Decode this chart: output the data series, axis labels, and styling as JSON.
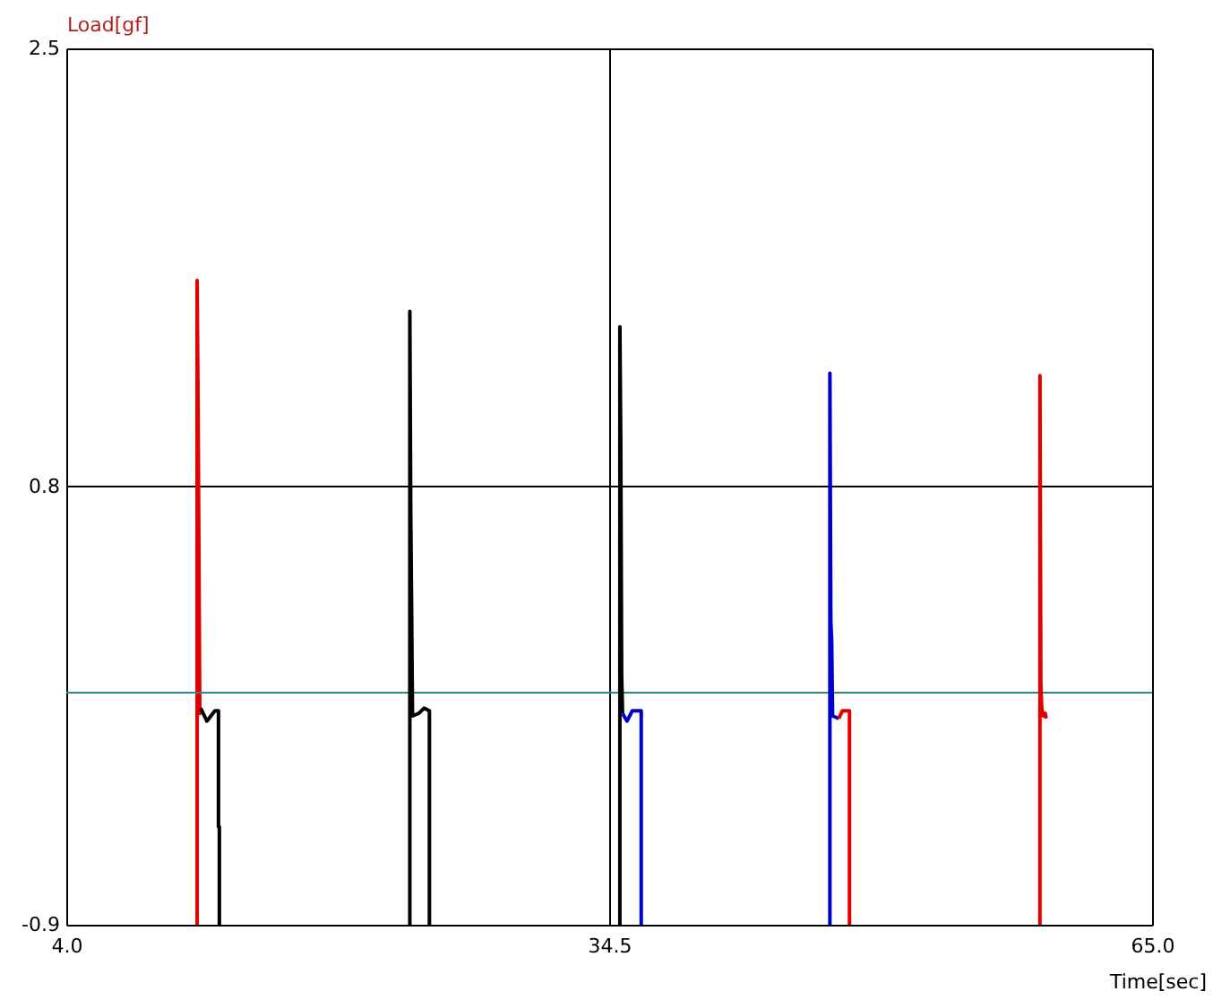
{
  "chart_data": {
    "type": "line",
    "xlabel": "Time[sec]",
    "ylabel": "Load[gf]",
    "xlim": [
      4.0,
      65.0
    ],
    "xticks": [
      {
        "value": 4.0,
        "label": "4.0"
      },
      34.5,
      {
        "value": 65.0,
        "label": "65.0"
      }
    ],
    "ylim": [
      -0.9,
      2.5
    ],
    "yticks": [
      -0.9,
      0.8,
      2.5
    ],
    "grid": true,
    "line_style": "solid",
    "marker": "none",
    "ref_lines": [
      {
        "axis": "y",
        "value": 0.0,
        "color": "#2a8a8a"
      }
    ],
    "series": [
      {
        "color": "#e00000",
        "x": [
          11.35,
          11.35,
          11.4,
          11.45,
          11.5,
          11.55
        ],
        "values": [
          -0.9,
          1.6,
          1.14,
          0.55,
          -0.08,
          -0.06
        ]
      },
      {
        "color": "#000000",
        "x": [
          11.55,
          11.9,
          12.35,
          12.55,
          12.55,
          12.6,
          12.6
        ],
        "values": [
          -0.06,
          -0.11,
          -0.07,
          -0.07,
          -0.52,
          -0.52,
          -0.9
        ]
      },
      {
        "color": "#000000",
        "x": [
          23.3,
          23.3,
          23.35,
          23.4,
          23.45,
          23.8,
          24.1,
          24.4,
          24.4
        ],
        "values": [
          -0.9,
          1.48,
          0.7,
          0.32,
          -0.09,
          -0.08,
          -0.06,
          -0.07,
          -0.9
        ]
      },
      {
        "color": "#000000",
        "x": [
          35.1,
          35.1,
          35.15,
          35.2,
          35.25
        ],
        "values": [
          -0.9,
          1.42,
          0.97,
          0.07,
          -0.08
        ]
      },
      {
        "color": "#0000cc",
        "x": [
          35.25,
          35.5,
          35.8,
          36.3,
          36.3
        ],
        "values": [
          -0.08,
          -0.11,
          -0.07,
          -0.07,
          -0.9
        ]
      },
      {
        "color": "#0000cc",
        "x": [
          46.9,
          46.9,
          46.95,
          47.0,
          47.05,
          47.4
        ],
        "values": [
          -0.9,
          1.24,
          0.28,
          0.2,
          -0.09,
          -0.1
        ]
      },
      {
        "color": "#e00000",
        "x": [
          47.4,
          47.6,
          48.0,
          48.0
        ],
        "values": [
          -0.1,
          -0.07,
          -0.07,
          -0.9
        ]
      },
      {
        "color": "#e00000",
        "x": [
          58.7,
          58.7,
          58.75,
          58.8,
          58.9,
          59.0,
          59.05
        ],
        "values": [
          -0.9,
          1.23,
          0.03,
          -0.06,
          -0.09,
          -0.08,
          -0.1
        ]
      }
    ]
  }
}
